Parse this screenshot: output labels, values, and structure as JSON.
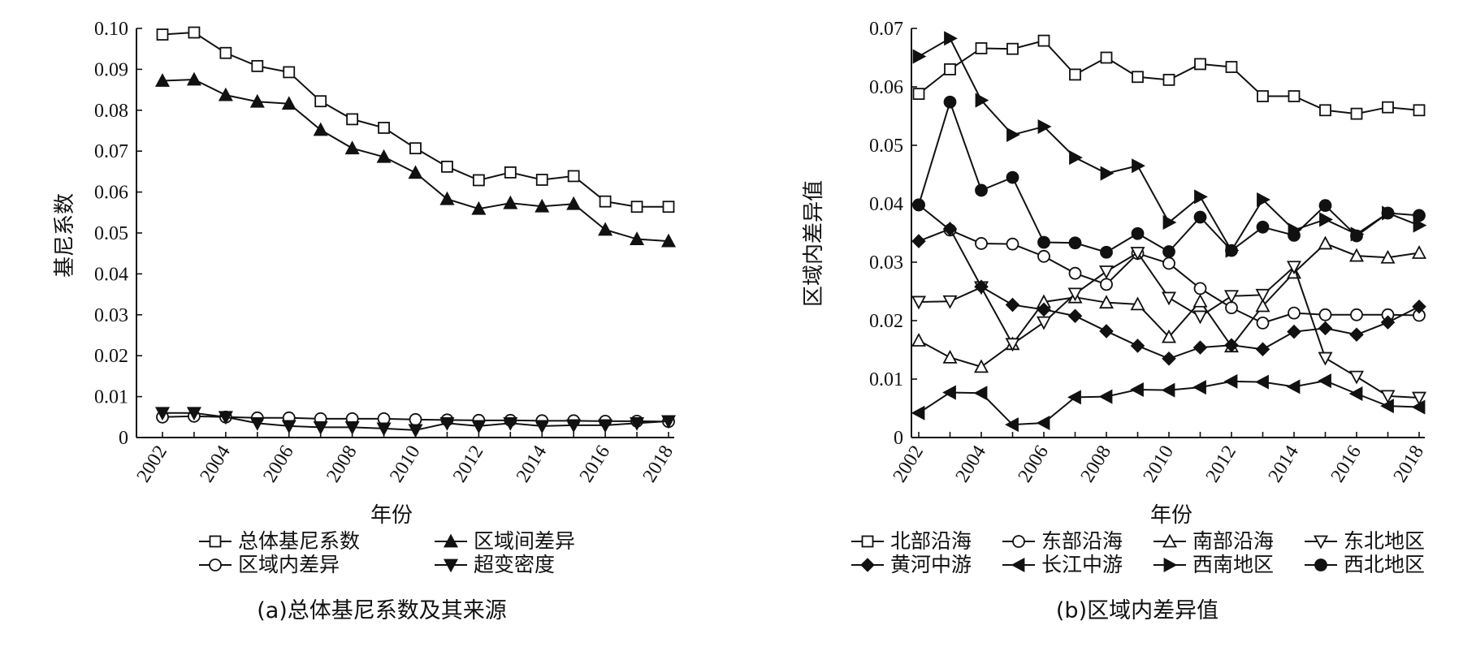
{
  "chart_data": [
    {
      "type": "line",
      "caption": "(a)总体基尼系数及其来源",
      "xlabel": "年份",
      "ylabel": "基尼系数",
      "x": [
        2002,
        2003,
        2004,
        2005,
        2006,
        2007,
        2008,
        2009,
        2010,
        2011,
        2012,
        2013,
        2014,
        2015,
        2016,
        2017,
        2018
      ],
      "x_tick_labels": [
        "2002",
        "2004",
        "2006",
        "2008",
        "2010",
        "2012",
        "2014",
        "2016",
        "2018"
      ],
      "y_tick_labels": [
        "0",
        "0.01",
        "0.02",
        "0.03",
        "0.04",
        "0.05",
        "0.06",
        "0.07",
        "0.08",
        "0.09",
        "0.10"
      ],
      "xlim": [
        2002,
        2018
      ],
      "ylim": [
        0,
        0.1
      ],
      "grid": false,
      "legend_placement": "bottom",
      "series": [
        {
          "name": "总体基尼系数",
          "marker": "square-open",
          "values": [
            0.0985,
            0.099,
            0.094,
            0.0908,
            0.0893,
            0.0822,
            0.0778,
            0.0757,
            0.0707,
            0.0662,
            0.0629,
            0.0648,
            0.063,
            0.0639,
            0.0577,
            0.0564,
            0.0564
          ]
        },
        {
          "name": "区域间差异",
          "marker": "triangle-up-filled",
          "values": [
            0.0872,
            0.0875,
            0.0837,
            0.0821,
            0.0816,
            0.0752,
            0.0707,
            0.0686,
            0.0647,
            0.0583,
            0.0559,
            0.0573,
            0.0565,
            0.0571,
            0.0508,
            0.0485,
            0.048
          ]
        },
        {
          "name": "区域内差异",
          "marker": "circle-open",
          "values": [
            0.005,
            0.0052,
            0.005,
            0.0048,
            0.0048,
            0.0046,
            0.0046,
            0.0046,
            0.0044,
            0.0043,
            0.0042,
            0.0042,
            0.0041,
            0.0041,
            0.004,
            0.004,
            0.0039
          ]
        },
        {
          "name": "超变密度",
          "marker": "triangle-down-filled",
          "values": [
            0.006,
            0.006,
            0.005,
            0.0035,
            0.0028,
            0.0025,
            0.0025,
            0.0022,
            0.0018,
            0.0035,
            0.0028,
            0.0035,
            0.0028,
            0.003,
            0.003,
            0.0035,
            0.004
          ]
        }
      ]
    },
    {
      "type": "line",
      "caption": "(b)区域内差异值",
      "xlabel": "年份",
      "ylabel": "区域内差异值",
      "x": [
        2002,
        2003,
        2004,
        2005,
        2006,
        2007,
        2008,
        2009,
        2010,
        2011,
        2012,
        2013,
        2014,
        2015,
        2016,
        2017,
        2018
      ],
      "x_tick_labels": [
        "2002",
        "2004",
        "2006",
        "2008",
        "2010",
        "2012",
        "2014",
        "2016",
        "2018"
      ],
      "y_tick_labels": [
        "0",
        "0.01",
        "0.02",
        "0.03",
        "0.04",
        "0.05",
        "0.06",
        "0.07"
      ],
      "xlim": [
        2002,
        2018
      ],
      "ylim": [
        0,
        0.07
      ],
      "grid": false,
      "legend_placement": "bottom",
      "series": [
        {
          "name": "北部沿海",
          "marker": "square-open",
          "values": [
            0.0588,
            0.063,
            0.0666,
            0.0665,
            0.0679,
            0.0621,
            0.065,
            0.0617,
            0.0612,
            0.0639,
            0.0634,
            0.0584,
            0.0584,
            0.056,
            0.0554,
            0.0565,
            0.056
          ]
        },
        {
          "name": "东部沿海",
          "marker": "circle-open",
          "values": [
            0.0398,
            0.0355,
            0.0332,
            0.0331,
            0.031,
            0.0281,
            0.0262,
            0.0315,
            0.0298,
            0.0255,
            0.0222,
            0.0196,
            0.0213,
            0.021,
            0.021,
            0.021,
            0.0209
          ]
        },
        {
          "name": "南部沿海",
          "marker": "triangle-up-open",
          "values": [
            0.0166,
            0.0137,
            0.0121,
            0.016,
            0.0232,
            0.024,
            0.0231,
            0.0228,
            0.0172,
            0.0233,
            0.0156,
            0.0225,
            0.0282,
            0.0332,
            0.0311,
            0.0308,
            0.0316
          ]
        },
        {
          "name": "东北地区",
          "marker": "triangle-down-open",
          "values": [
            0.0232,
            0.0233,
            0.0257,
            0.016,
            0.0197,
            0.0246,
            0.0284,
            0.0316,
            0.0239,
            0.0207,
            0.0242,
            0.0244,
            0.0292,
            0.0136,
            0.0104,
            0.0071,
            0.0068
          ]
        },
        {
          "name": "黄河中游",
          "marker": "diamond-filled",
          "values": [
            0.0336,
            0.0357,
            0.0258,
            0.0227,
            0.0219,
            0.0208,
            0.0182,
            0.0157,
            0.0135,
            0.0154,
            0.0158,
            0.0151,
            0.0181,
            0.0187,
            0.0176,
            0.0197,
            0.0224
          ]
        },
        {
          "name": "长江中游",
          "marker": "triangle-left-filled",
          "values": [
            0.0042,
            0.0077,
            0.0076,
            0.0022,
            0.0025,
            0.0069,
            0.007,
            0.0082,
            0.0081,
            0.0086,
            0.0096,
            0.0095,
            0.0087,
            0.0097,
            0.0075,
            0.0054,
            0.0052
          ]
        },
        {
          "name": "西南地区",
          "marker": "triangle-right-filled",
          "values": [
            0.0652,
            0.0683,
            0.0577,
            0.0518,
            0.0532,
            0.0479,
            0.0452,
            0.0465,
            0.0368,
            0.0412,
            0.032,
            0.0407,
            0.0355,
            0.0373,
            0.0348,
            0.0384,
            0.0363
          ]
        },
        {
          "name": "西北地区",
          "marker": "circle-filled",
          "values": [
            0.0398,
            0.0574,
            0.0423,
            0.0445,
            0.0334,
            0.0333,
            0.0317,
            0.0349,
            0.0318,
            0.0377,
            0.032,
            0.036,
            0.0346,
            0.0397,
            0.0345,
            0.0384,
            0.038
          ]
        }
      ]
    }
  ]
}
